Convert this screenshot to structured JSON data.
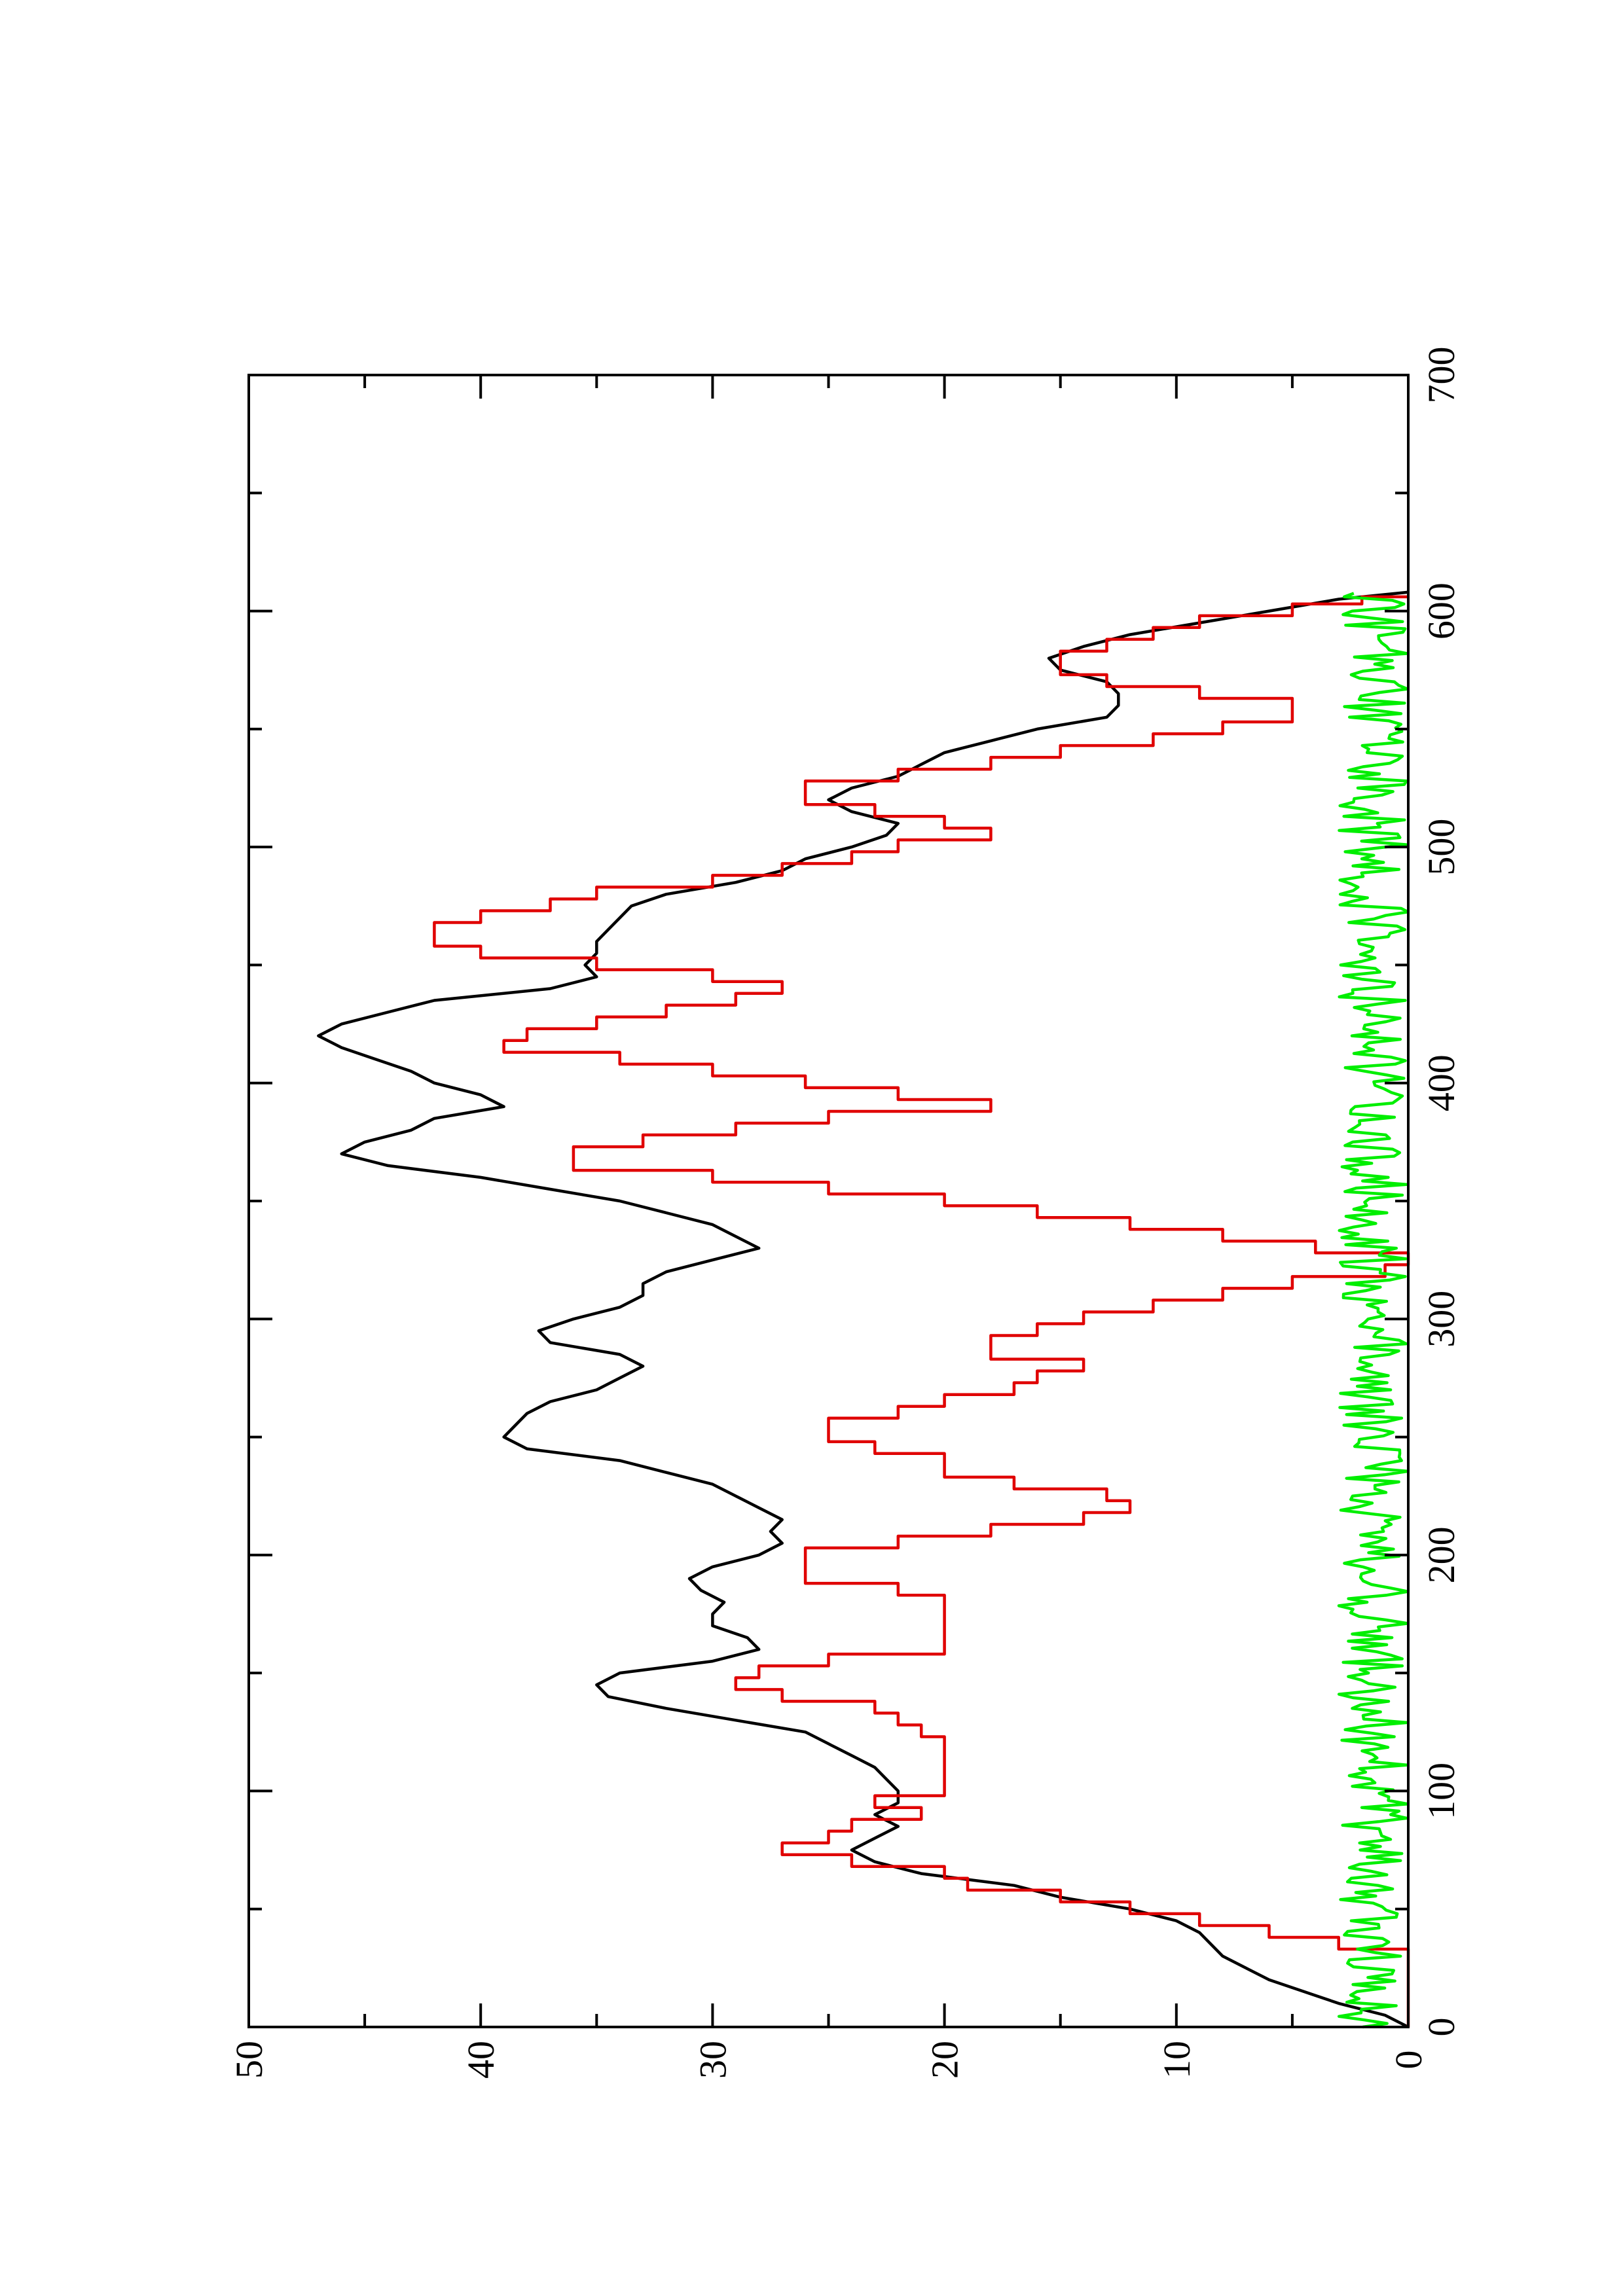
{
  "chart_data": {
    "type": "line",
    "rotated": "90deg-clockwise",
    "title": "",
    "xlabel": "",
    "ylabel": "",
    "xlim": [
      0,
      700
    ],
    "ylim": [
      0,
      50
    ],
    "x_ticks": [
      "0",
      "100",
      "200",
      "300",
      "400",
      "500",
      "600",
      "700"
    ],
    "y_ticks": [
      "0",
      "10",
      "20",
      "30",
      "40",
      "50"
    ],
    "grid": false,
    "legend": "none",
    "colors": {
      "axis": "#000000",
      "black_series": "#000000",
      "red_series": "#e00000",
      "green_series": "#00ee00"
    },
    "series": [
      {
        "color": "#000000",
        "style": "line",
        "points": [
          [
            0,
            0
          ],
          [
            5,
            1
          ],
          [
            10,
            3
          ],
          [
            15,
            4.5
          ],
          [
            20,
            6
          ],
          [
            25,
            7
          ],
          [
            30,
            8
          ],
          [
            35,
            8.5
          ],
          [
            40,
            9
          ],
          [
            45,
            10
          ],
          [
            50,
            12
          ],
          [
            55,
            15
          ],
          [
            60,
            17
          ],
          [
            65,
            21
          ],
          [
            70,
            23
          ],
          [
            75,
            24
          ],
          [
            80,
            23
          ],
          [
            85,
            22
          ],
          [
            90,
            23
          ],
          [
            95,
            22
          ],
          [
            100,
            22
          ],
          [
            105,
            22.5
          ],
          [
            110,
            23
          ],
          [
            115,
            24
          ],
          [
            120,
            25
          ],
          [
            125,
            26
          ],
          [
            130,
            29
          ],
          [
            135,
            32
          ],
          [
            140,
            34.5
          ],
          [
            145,
            35
          ],
          [
            150,
            34
          ],
          [
            155,
            30
          ],
          [
            160,
            28
          ],
          [
            165,
            28.5
          ],
          [
            170,
            30
          ],
          [
            175,
            30
          ],
          [
            180,
            29.5
          ],
          [
            185,
            30.5
          ],
          [
            190,
            31
          ],
          [
            195,
            30
          ],
          [
            200,
            28
          ],
          [
            205,
            27
          ],
          [
            210,
            27.5
          ],
          [
            215,
            27
          ],
          [
            220,
            28
          ],
          [
            225,
            29
          ],
          [
            230,
            30
          ],
          [
            235,
            32
          ],
          [
            240,
            34
          ],
          [
            245,
            38
          ],
          [
            250,
            39
          ],
          [
            255,
            38.5
          ],
          [
            260,
            38
          ],
          [
            265,
            37
          ],
          [
            270,
            35
          ],
          [
            275,
            34
          ],
          [
            280,
            33
          ],
          [
            285,
            34
          ],
          [
            290,
            37
          ],
          [
            295,
            37.5
          ],
          [
            300,
            36
          ],
          [
            305,
            34
          ],
          [
            310,
            33
          ],
          [
            315,
            33
          ],
          [
            320,
            32
          ],
          [
            325,
            30
          ],
          [
            330,
            28
          ],
          [
            335,
            29
          ],
          [
            340,
            30
          ],
          [
            345,
            32
          ],
          [
            350,
            34
          ],
          [
            355,
            37
          ],
          [
            360,
            40
          ],
          [
            365,
            44
          ],
          [
            370,
            46
          ],
          [
            375,
            45
          ],
          [
            380,
            43
          ],
          [
            385,
            42
          ],
          [
            390,
            39
          ],
          [
            395,
            40
          ],
          [
            400,
            42
          ],
          [
            405,
            43
          ],
          [
            410,
            44.5
          ],
          [
            415,
            46
          ],
          [
            420,
            47
          ],
          [
            425,
            46
          ],
          [
            430,
            44
          ],
          [
            435,
            42
          ],
          [
            440,
            37
          ],
          [
            445,
            35
          ],
          [
            450,
            35.5
          ],
          [
            455,
            35
          ],
          [
            460,
            35
          ],
          [
            465,
            34.5
          ],
          [
            470,
            34
          ],
          [
            475,
            33.5
          ],
          [
            480,
            32
          ],
          [
            485,
            29
          ],
          [
            490,
            27
          ],
          [
            495,
            26
          ],
          [
            500,
            24
          ],
          [
            505,
            22.5
          ],
          [
            510,
            22
          ],
          [
            515,
            24
          ],
          [
            520,
            25
          ],
          [
            525,
            24
          ],
          [
            530,
            22
          ],
          [
            535,
            21
          ],
          [
            540,
            20
          ],
          [
            545,
            18
          ],
          [
            550,
            16
          ],
          [
            555,
            13
          ],
          [
            560,
            12.5
          ],
          [
            565,
            12.5
          ],
          [
            570,
            13
          ],
          [
            575,
            15
          ],
          [
            580,
            15.5
          ],
          [
            585,
            14
          ],
          [
            590,
            12
          ],
          [
            595,
            9
          ],
          [
            600,
            6
          ],
          [
            605,
            3
          ],
          [
            608,
            0
          ]
        ]
      },
      {
        "color": "#e00000",
        "style": "step",
        "points": [
          [
            0,
            0
          ],
          [
            28,
            0
          ],
          [
            33,
            3
          ],
          [
            38,
            6
          ],
          [
            43,
            9
          ],
          [
            48,
            12
          ],
          [
            53,
            15
          ],
          [
            58,
            19
          ],
          [
            63,
            20
          ],
          [
            68,
            24
          ],
          [
            73,
            27
          ],
          [
            78,
            25
          ],
          [
            83,
            24
          ],
          [
            88,
            21
          ],
          [
            93,
            23
          ],
          [
            98,
            20
          ],
          [
            103,
            20
          ],
          [
            108,
            20
          ],
          [
            113,
            20
          ],
          [
            118,
            20
          ],
          [
            123,
            21
          ],
          [
            128,
            22
          ],
          [
            133,
            23
          ],
          [
            138,
            27
          ],
          [
            143,
            29
          ],
          [
            148,
            28
          ],
          [
            153,
            25
          ],
          [
            158,
            20
          ],
          [
            163,
            20
          ],
          [
            168,
            20
          ],
          [
            173,
            20
          ],
          [
            178,
            20
          ],
          [
            183,
            22
          ],
          [
            188,
            26
          ],
          [
            193,
            26
          ],
          [
            198,
            26
          ],
          [
            203,
            22
          ],
          [
            208,
            18
          ],
          [
            213,
            14
          ],
          [
            218,
            12
          ],
          [
            223,
            13
          ],
          [
            228,
            17
          ],
          [
            233,
            20
          ],
          [
            238,
            20
          ],
          [
            243,
            23
          ],
          [
            248,
            25
          ],
          [
            253,
            25
          ],
          [
            258,
            22
          ],
          [
            263,
            20
          ],
          [
            268,
            17
          ],
          [
            273,
            16
          ],
          [
            278,
            14
          ],
          [
            283,
            18
          ],
          [
            288,
            18
          ],
          [
            293,
            16
          ],
          [
            298,
            14
          ],
          [
            303,
            11
          ],
          [
            308,
            8
          ],
          [
            313,
            5
          ],
          [
            318,
            1
          ],
          [
            323,
            0
          ],
          [
            328,
            4
          ],
          [
            333,
            8
          ],
          [
            338,
            12
          ],
          [
            343,
            16
          ],
          [
            348,
            20
          ],
          [
            353,
            25
          ],
          [
            358,
            30
          ],
          [
            363,
            36
          ],
          [
            368,
            36
          ],
          [
            373,
            33
          ],
          [
            378,
            29
          ],
          [
            383,
            25
          ],
          [
            388,
            18
          ],
          [
            393,
            22
          ],
          [
            398,
            26
          ],
          [
            403,
            30
          ],
          [
            408,
            34
          ],
          [
            413,
            39
          ],
          [
            418,
            38
          ],
          [
            423,
            35
          ],
          [
            428,
            32
          ],
          [
            433,
            29
          ],
          [
            438,
            27
          ],
          [
            443,
            30
          ],
          [
            448,
            35
          ],
          [
            453,
            40
          ],
          [
            458,
            42
          ],
          [
            463,
            42
          ],
          [
            468,
            40
          ],
          [
            473,
            37
          ],
          [
            478,
            35
          ],
          [
            483,
            30
          ],
          [
            488,
            27
          ],
          [
            493,
            24
          ],
          [
            498,
            22
          ],
          [
            503,
            18
          ],
          [
            508,
            20
          ],
          [
            513,
            23
          ],
          [
            518,
            26
          ],
          [
            523,
            26
          ],
          [
            528,
            22
          ],
          [
            533,
            18
          ],
          [
            538,
            15
          ],
          [
            543,
            11
          ],
          [
            548,
            8
          ],
          [
            553,
            5
          ],
          [
            558,
            5
          ],
          [
            563,
            9
          ],
          [
            568,
            13
          ],
          [
            573,
            15
          ],
          [
            578,
            15
          ],
          [
            583,
            13
          ],
          [
            588,
            11
          ],
          [
            593,
            9
          ],
          [
            598,
            5
          ],
          [
            603,
            2
          ],
          [
            606,
            0
          ]
        ]
      },
      {
        "color": "#00ee00",
        "style": "line",
        "noise_range": [
          0,
          3
        ],
        "x_range": [
          0,
          608
        ]
      }
    ]
  }
}
